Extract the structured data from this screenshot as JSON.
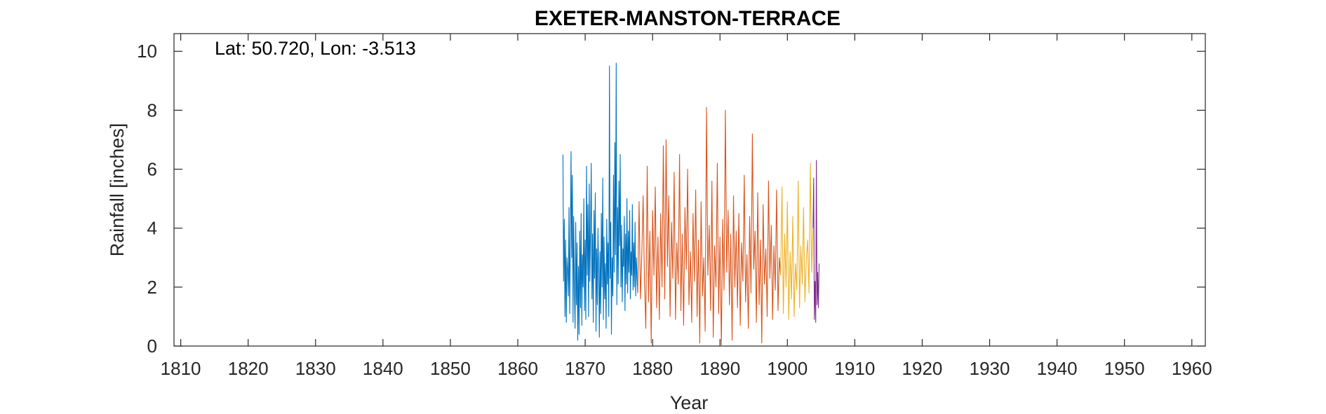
{
  "chart_data": {
    "type": "line",
    "title": "EXETER-MANSTON-TERRACE",
    "annotation": "Lat: 50.720, Lon: -3.513",
    "xlabel": "Year",
    "ylabel": "Rainfall [inches]",
    "xlim": [
      1809,
      1962
    ],
    "ylim": [
      0,
      10.6
    ],
    "xticks": [
      1810,
      1820,
      1830,
      1840,
      1850,
      1860,
      1870,
      1880,
      1890,
      1900,
      1910,
      1920,
      1930,
      1940,
      1950,
      1960
    ],
    "yticks": [
      0,
      2,
      4,
      6,
      8,
      10
    ],
    "grid": false,
    "series": [
      {
        "color": "#0072BD",
        "x": [
          1866.7,
          1866.8,
          1866.9,
          1867.0,
          1867.1,
          1867.2,
          1867.3,
          1867.4,
          1867.5,
          1867.6,
          1867.7,
          1867.8,
          1867.9,
          1868.0,
          1868.1,
          1868.2,
          1868.3,
          1868.4,
          1868.5,
          1868.6,
          1868.7,
          1868.8,
          1868.9,
          1869.0,
          1869.1,
          1869.2,
          1869.3,
          1869.4,
          1869.5,
          1869.6,
          1869.7,
          1869.8,
          1869.9,
          1870.0,
          1870.1,
          1870.2,
          1870.3,
          1870.4,
          1870.5,
          1870.6,
          1870.7,
          1870.8,
          1870.9,
          1871.0,
          1871.1,
          1871.2,
          1871.3,
          1871.4,
          1871.5,
          1871.6,
          1871.7,
          1871.8,
          1871.9,
          1872.0,
          1872.1,
          1872.2,
          1872.3,
          1872.4,
          1872.5,
          1872.6,
          1872.7,
          1872.8,
          1872.9,
          1873.0,
          1873.1,
          1873.2,
          1873.3,
          1873.4,
          1873.5,
          1873.6,
          1873.7,
          1873.8,
          1873.9,
          1874.0,
          1874.1,
          1874.2,
          1874.3,
          1874.4,
          1874.5,
          1874.6,
          1874.7,
          1874.8,
          1874.9,
          1875.0,
          1875.1,
          1875.2,
          1875.3,
          1875.4,
          1875.5,
          1875.6,
          1875.7,
          1875.8,
          1875.9,
          1876.0,
          1876.1,
          1876.2,
          1876.3,
          1876.4,
          1876.5,
          1876.6,
          1876.7,
          1876.8,
          1876.9,
          1877.0,
          1877.1,
          1877.2,
          1877.3,
          1877.4,
          1877.5,
          1877.6,
          1877.7,
          1877.8
        ],
        "y": [
          6.5,
          2.2,
          4.3,
          1.0,
          3.6,
          0.8,
          3.0,
          2.6,
          1.7,
          4.7,
          1.1,
          3.4,
          6.6,
          3.0,
          5.8,
          0.8,
          4.4,
          2.0,
          0.6,
          4.2,
          1.4,
          3.5,
          0.2,
          2.7,
          0.4,
          3.9,
          1.3,
          4.5,
          0.7,
          3.1,
          2.0,
          5.0,
          1.2,
          3.6,
          0.9,
          6.1,
          2.4,
          4.8,
          1.0,
          5.5,
          2.2,
          4.1,
          6.2,
          1.6,
          3.8,
          0.8,
          4.6,
          2.3,
          5.2,
          0.5,
          3.3,
          1.4,
          4.0,
          2.6,
          0.3,
          3.2,
          1.1,
          4.5,
          2.0,
          5.7,
          0.9,
          3.7,
          1.6,
          2.8,
          0.6,
          4.3,
          2.1,
          3.5,
          1.0,
          9.5,
          2.3,
          4.2,
          0.4,
          3.0,
          1.7,
          5.8,
          2.5,
          6.9,
          3.1,
          9.6,
          1.4,
          4.7,
          2.1,
          5.6,
          3.4,
          6.5,
          2.0,
          4.1,
          1.5,
          3.3,
          2.7,
          4.4,
          1.2,
          3.8,
          2.1,
          5.0,
          1.8,
          3.9,
          2.5,
          4.6,
          1.6,
          3.2,
          2.4,
          4.8,
          1.9,
          3.5,
          2.0,
          4.2,
          1.7,
          3.0,
          2.3,
          1.8
        ]
      },
      {
        "color": "#D95319",
        "x": [
          1877.8,
          1878.0,
          1878.2,
          1878.4,
          1878.6,
          1878.8,
          1879.0,
          1879.2,
          1879.4,
          1879.6,
          1879.8,
          1880.0,
          1880.2,
          1880.4,
          1880.6,
          1880.8,
          1881.0,
          1881.2,
          1881.4,
          1881.6,
          1881.8,
          1882.0,
          1882.2,
          1882.4,
          1882.6,
          1882.8,
          1883.0,
          1883.2,
          1883.4,
          1883.6,
          1883.8,
          1884.0,
          1884.2,
          1884.4,
          1884.6,
          1884.8,
          1885.0,
          1885.2,
          1885.4,
          1885.6,
          1885.8,
          1886.0,
          1886.2,
          1886.4,
          1886.6,
          1886.8,
          1887.0,
          1887.2,
          1887.4,
          1887.6,
          1887.8,
          1888.0,
          1888.2,
          1888.4,
          1888.6,
          1888.8,
          1889.0,
          1889.2,
          1889.4,
          1889.6,
          1889.8,
          1890.0,
          1890.2,
          1890.4,
          1890.6,
          1890.8,
          1891.0,
          1891.2,
          1891.4,
          1891.6,
          1891.8,
          1892.0,
          1892.2,
          1892.4,
          1892.6,
          1892.8,
          1893.0,
          1893.2,
          1893.4,
          1893.6,
          1893.8,
          1894.0,
          1894.2,
          1894.4,
          1894.6,
          1894.8,
          1895.0,
          1895.2,
          1895.4,
          1895.6,
          1895.8,
          1896.0,
          1896.2,
          1896.4,
          1896.6,
          1896.8,
          1897.0,
          1897.2,
          1897.4,
          1897.6,
          1897.8,
          1898.0,
          1898.2,
          1898.4,
          1898.6,
          1898.8,
          1899.0
        ],
        "y": [
          1.8,
          4.9,
          1.6,
          3.1,
          5.1,
          2.2,
          0.6,
          6.1,
          1.5,
          3.9,
          0.1,
          4.6,
          2.4,
          5.4,
          1.3,
          3.7,
          0.9,
          4.5,
          2.0,
          6.8,
          1.6,
          7.0,
          2.7,
          5.1,
          1.0,
          4.2,
          2.3,
          5.9,
          0.9,
          3.5,
          2.1,
          6.5,
          1.2,
          3.8,
          0.7,
          4.7,
          2.6,
          6.0,
          1.4,
          3.2,
          0.8,
          4.5,
          2.2,
          5.3,
          1.0,
          3.6,
          0.1,
          4.9,
          1.7,
          3.0,
          0.5,
          8.1,
          2.4,
          4.1,
          1.2,
          5.6,
          0.3,
          3.4,
          2.0,
          6.2,
          1.1,
          3.7,
          0.0,
          4.3,
          1.9,
          8.0,
          2.5,
          4.6,
          1.4,
          3.8,
          0.2,
          5.1,
          2.0,
          3.9,
          1.3,
          4.5,
          0.7,
          3.5,
          2.2,
          5.8,
          1.5,
          3.1,
          0.6,
          4.4,
          1.8,
          7.2,
          2.6,
          3.9,
          0.8,
          5.2,
          1.4,
          3.6,
          0.1,
          4.8,
          2.1,
          3.3,
          1.0,
          5.6,
          2.3,
          4.1,
          0.9,
          3.4,
          1.9,
          5.3,
          1.2,
          3.0,
          2.4
        ]
      },
      {
        "color": "#EDB120",
        "x": [
          1899.0,
          1899.2,
          1899.4,
          1899.6,
          1899.8,
          1900.0,
          1900.2,
          1900.4,
          1900.6,
          1900.8,
          1901.0,
          1901.2,
          1901.4,
          1901.6,
          1901.8,
          1902.0,
          1902.2,
          1902.4,
          1902.6,
          1902.8,
          1903.0,
          1903.2,
          1903.4,
          1903.6,
          1903.8
        ],
        "y": [
          2.4,
          5.4,
          1.1,
          3.8,
          2.0,
          4.9,
          0.9,
          3.2,
          1.6,
          4.4,
          1.0,
          2.8,
          1.9,
          5.6,
          1.3,
          3.4,
          2.1,
          4.7,
          1.5,
          2.9,
          3.6,
          1.8,
          6.2,
          2.5,
          4.0
        ]
      },
      {
        "color": "#7E2F8E",
        "x": [
          1903.8,
          1903.9,
          1904.0,
          1904.1,
          1904.2,
          1904.3,
          1904.4,
          1904.5,
          1904.6,
          1904.7
        ],
        "y": [
          4.0,
          5.7,
          0.9,
          2.2,
          0.8,
          6.3,
          1.4,
          2.5,
          1.3,
          2.8
        ]
      }
    ]
  }
}
